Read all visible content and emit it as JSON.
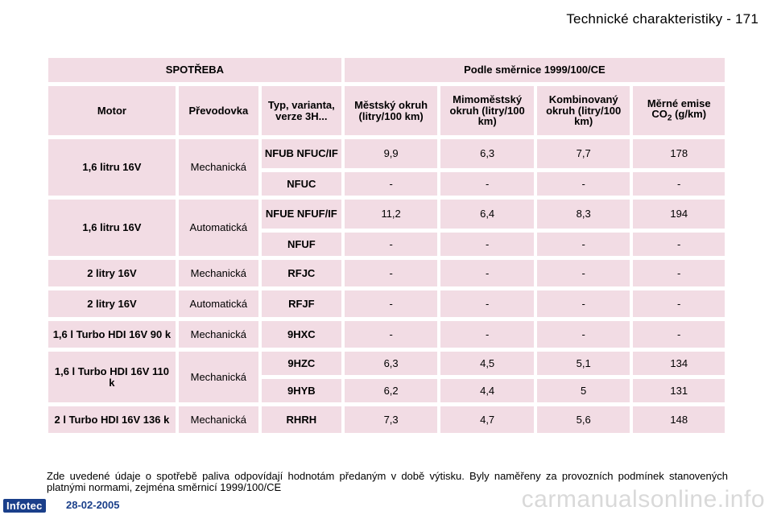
{
  "header": {
    "title": "Technické charakteristiky - 171"
  },
  "table": {
    "group_left": "SPOTŘEBA",
    "group_right": "Podle směrnice 1999/100/CE",
    "columns": {
      "motor": "Motor",
      "gearbox": "Převodovka",
      "type": "Typ, varianta, verze 3H...",
      "urban": "Městský okruh (litry/100 km)",
      "extra_urban": "Mimoměstský okruh (litry/100 km)",
      "combined": "Kombinovaný okruh (litry/100 km)",
      "co2_prefix": "Měrné emise CO",
      "co2_sub": "2",
      "co2_suffix": "(g/km)"
    },
    "rows": [
      {
        "motor": "1,6 litru 16V",
        "gearbox": "Mechanická",
        "code": "NFUB NFUC/IF",
        "urban": "9,9",
        "extra": "6,3",
        "combined": "7,7",
        "co2": "178"
      },
      {
        "code": "NFUC",
        "urban": "-",
        "extra": "-",
        "combined": "-",
        "co2": "-"
      },
      {
        "motor": "1,6 litru 16V",
        "gearbox": "Automatická",
        "code": "NFUE NFUF/IF",
        "urban": "11,2",
        "extra": "6,4",
        "combined": "8,3",
        "co2": "194"
      },
      {
        "code": "NFUF",
        "urban": "-",
        "extra": "-",
        "combined": "-",
        "co2": "-"
      },
      {
        "motor": "2 litry 16V",
        "gearbox": "Mechanická",
        "code": "RFJC",
        "urban": "-",
        "extra": "-",
        "combined": "-",
        "co2": "-"
      },
      {
        "motor": "2 litry 16V",
        "gearbox": "Automatická",
        "code": "RFJF",
        "urban": "-",
        "extra": "-",
        "combined": "-",
        "co2": "-"
      },
      {
        "motor": "1,6 l Turbo HDI 16V 90 k",
        "gearbox": "Mechanická",
        "code": "9HXC",
        "urban": "-",
        "extra": "-",
        "combined": "-",
        "co2": "-"
      },
      {
        "motor": "1,6 l Turbo HDI 16V 110 k",
        "gearbox": "Mechanická",
        "code": "9HZC",
        "urban": "6,3",
        "extra": "4,5",
        "combined": "5,1",
        "co2": "134"
      },
      {
        "code": "9HYB",
        "urban": "6,2",
        "extra": "4,4",
        "combined": "5",
        "co2": "131"
      },
      {
        "motor": "2 l Turbo HDI 16V 136 k",
        "gearbox": "Mechanická",
        "code": "RHRH",
        "urban": "7,3",
        "extra": "4,7",
        "combined": "5,6",
        "co2": "148"
      }
    ]
  },
  "footnote": "Zde uvedené údaje o spotřebě paliva odpovídají hodnotám předaným v době výtisku. Byly naměřeny za provozních podmínek stanovených platnými normami, zejména směrnicí 1999/100/CE",
  "footer": {
    "logo": "Infotec",
    "date": "28-02-2005",
    "watermark": "carmanualsonline.info"
  }
}
